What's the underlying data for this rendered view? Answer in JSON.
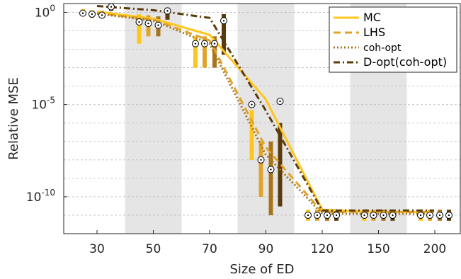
{
  "chart_data": {
    "type": "line",
    "xlabel": "Size of ED",
    "ylabel": "Relative MSE",
    "x_ticks": [
      "30",
      "50",
      "70",
      "90",
      "120",
      "150",
      "200"
    ],
    "y_ticks": [
      {
        "base": "10",
        "exp": "0",
        "value": 1
      },
      {
        "base": "10",
        "exp": "-5",
        "value": 1e-05
      },
      {
        "base": "10",
        "exp": "-10",
        "value": 1e-10
      }
    ],
    "y_scale": "log",
    "ylim": [
      1e-12,
      3
    ],
    "grid": "horizontal dashed",
    "shaded_groups": [
      "50",
      "90",
      "150"
    ],
    "legend_position": "top-right",
    "series": [
      {
        "name": "MC",
        "color": "#FFC61E",
        "dash": "solid",
        "values": [
          1.1,
          0.45,
          0.06,
          2e-05,
          2e-11,
          1.5e-11,
          1.5e-11
        ],
        "box_median": [
          0.9,
          0.3,
          0.02,
          1e-05,
          1e-11,
          1e-11,
          1e-11
        ],
        "box_q1": [
          0.6,
          0.02,
          0.001,
          1e-08,
          5e-12,
          5e-12,
          5e-12
        ],
        "box_q3": [
          1.5,
          0.8,
          0.05,
          5e-06,
          2e-11,
          2e-11,
          2e-11
        ]
      },
      {
        "name": "LHS",
        "color": "#E0A42A",
        "dash": "dashed",
        "values": [
          0.9,
          0.4,
          0.03,
          5e-08,
          1.5e-11,
          1.5e-11,
          1.5e-11
        ],
        "box_median": [
          0.8,
          0.25,
          0.02,
          1e-08,
          1e-11,
          1e-11,
          1e-11
        ],
        "box_q1": [
          0.5,
          0.05,
          0.001,
          1e-10,
          5e-12,
          5e-12,
          5e-12
        ],
        "box_q3": [
          1.3,
          0.7,
          0.05,
          1e-07,
          2e-11,
          2e-11,
          2e-11
        ]
      },
      {
        "name": "coh-opt",
        "color": "#A8731A",
        "dash": "dotted",
        "values": [
          0.85,
          0.35,
          0.02,
          2e-08,
          1.2e-11,
          1.2e-11,
          1.2e-11
        ],
        "box_median": [
          0.7,
          0.2,
          0.02,
          3e-09,
          1e-11,
          1e-11,
          1e-11
        ],
        "box_q1": [
          0.5,
          0.05,
          0.001,
          1e-11,
          5e-12,
          5e-12,
          5e-12
        ],
        "box_q3": [
          1.2,
          0.6,
          0.05,
          1e-07,
          2e-11,
          2e-11,
          2e-11
        ]
      },
      {
        "name": "D-opt(coh-opt)",
        "color": "#5B3A0A",
        "dash": "dashdot",
        "values": [
          2.2,
          1.3,
          0.5,
          5e-06,
          1.8e-11,
          1.8e-11,
          1.8e-11
        ],
        "box_median": [
          2.0,
          1.2,
          0.35,
          1.5e-05,
          1e-11,
          1e-11,
          1e-11
        ],
        "box_q1": [
          1.2,
          0.4,
          0.005,
          3e-11,
          5e-12,
          5e-12,
          5e-12
        ],
        "box_q3": [
          2.8,
          1.8,
          0.8,
          1e-06,
          2e-11,
          2e-11,
          2e-11
        ]
      }
    ]
  }
}
